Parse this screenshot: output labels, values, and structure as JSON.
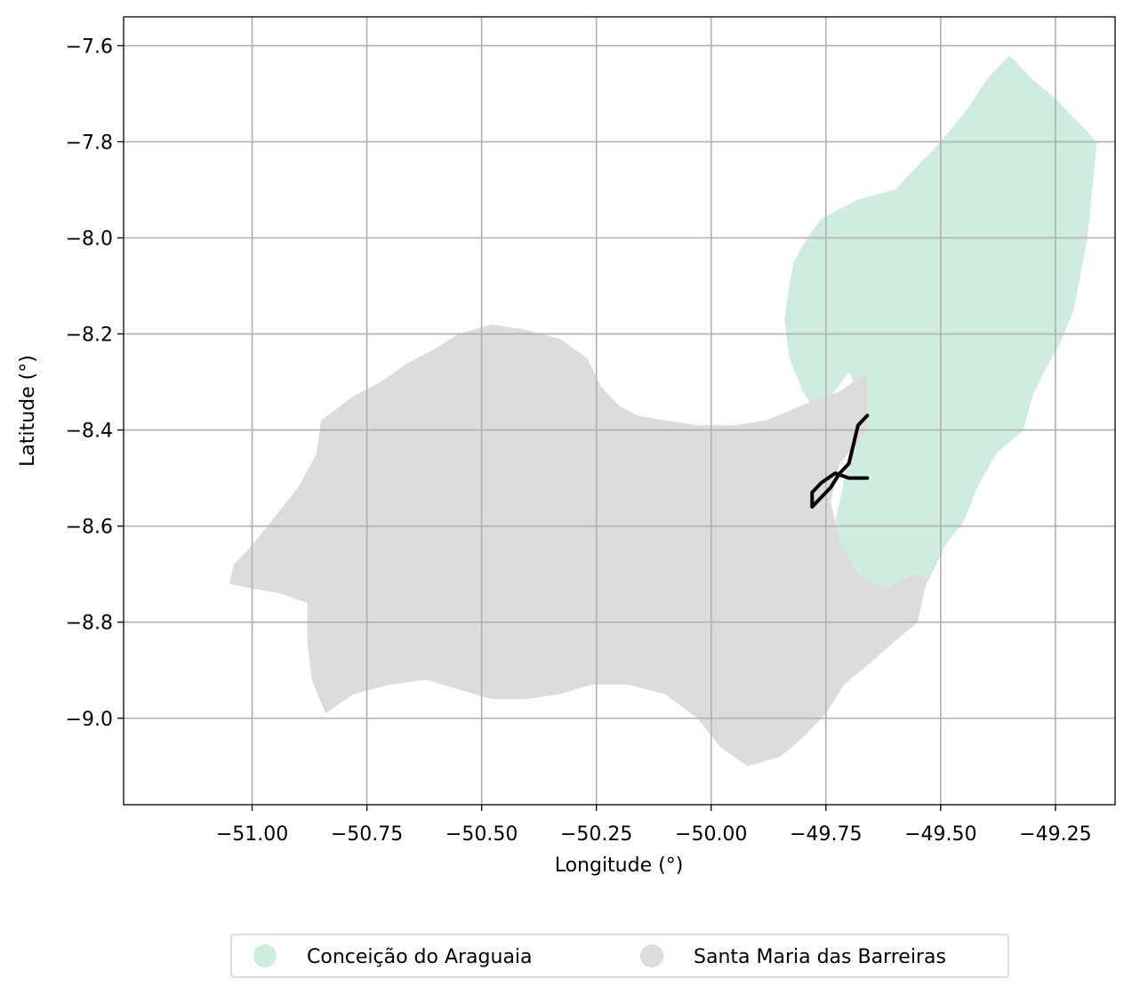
{
  "chart_data": {
    "type": "map",
    "xlabel": "Longitude (°)",
    "ylabel": "Latitude (°)",
    "xlim": [
      -51.28,
      -49.12
    ],
    "ylim": [
      -9.18,
      -7.54
    ],
    "x_ticks": [
      -51.0,
      -50.75,
      -50.5,
      -50.25,
      -50.0,
      -49.75,
      -49.5,
      -49.25
    ],
    "x_tick_labels": [
      "−51.00",
      "−50.75",
      "−50.50",
      "−50.25",
      "−50.00",
      "−49.75",
      "−49.50",
      "−49.25"
    ],
    "y_ticks": [
      -7.6,
      -7.8,
      -8.0,
      -8.2,
      -8.4,
      -8.6,
      -8.8,
      -9.0
    ],
    "y_tick_labels": [
      "−7.6",
      "−7.8",
      "−8.0",
      "−8.2",
      "−8.4",
      "−8.6",
      "−8.8",
      "−9.0"
    ],
    "grid": true,
    "legend_position": "bottom-center",
    "regions": [
      {
        "name": "Conceição do Araguaia",
        "color": "#cfece0",
        "coords": [
          [
            -49.35,
            -7.62
          ],
          [
            -49.3,
            -7.67
          ],
          [
            -49.25,
            -7.71
          ],
          [
            -49.2,
            -7.76
          ],
          [
            -49.16,
            -7.8
          ],
          [
            -49.17,
            -7.9
          ],
          [
            -49.18,
            -8.0
          ],
          [
            -49.2,
            -8.1
          ],
          [
            -49.21,
            -8.15
          ],
          [
            -49.24,
            -8.22
          ],
          [
            -49.27,
            -8.27
          ],
          [
            -49.3,
            -8.33
          ],
          [
            -49.32,
            -8.4
          ],
          [
            -49.38,
            -8.45
          ],
          [
            -49.42,
            -8.52
          ],
          [
            -49.45,
            -8.59
          ],
          [
            -49.49,
            -8.64
          ],
          [
            -49.53,
            -8.72
          ],
          [
            -49.56,
            -8.77
          ],
          [
            -49.59,
            -8.8
          ],
          [
            -49.63,
            -8.79
          ],
          [
            -49.7,
            -8.74
          ],
          [
            -49.73,
            -8.7
          ],
          [
            -49.74,
            -8.63
          ],
          [
            -49.72,
            -8.55
          ],
          [
            -49.7,
            -8.45
          ],
          [
            -49.68,
            -8.32
          ],
          [
            -49.7,
            -8.28
          ],
          [
            -49.74,
            -8.33
          ],
          [
            -49.76,
            -8.38
          ],
          [
            -49.8,
            -8.32
          ],
          [
            -49.83,
            -8.25
          ],
          [
            -49.84,
            -8.17
          ],
          [
            -49.83,
            -8.1
          ],
          [
            -49.82,
            -8.05
          ],
          [
            -49.79,
            -8.0
          ],
          [
            -49.76,
            -7.96
          ],
          [
            -49.68,
            -7.92
          ],
          [
            -49.6,
            -7.9
          ],
          [
            -49.55,
            -7.85
          ],
          [
            -49.5,
            -7.8
          ],
          [
            -49.44,
            -7.73
          ],
          [
            -49.4,
            -7.67
          ]
        ]
      },
      {
        "name": "Santa Maria das Barreiras",
        "color": "#dcdcdc",
        "coords": [
          [
            -51.04,
            -8.68
          ],
          [
            -51.0,
            -8.64
          ],
          [
            -50.95,
            -8.58
          ],
          [
            -50.9,
            -8.52
          ],
          [
            -50.86,
            -8.45
          ],
          [
            -50.85,
            -8.38
          ],
          [
            -50.78,
            -8.33
          ],
          [
            -50.72,
            -8.3
          ],
          [
            -50.66,
            -8.26
          ],
          [
            -50.6,
            -8.23
          ],
          [
            -50.55,
            -8.2
          ],
          [
            -50.48,
            -8.18
          ],
          [
            -50.41,
            -8.19
          ],
          [
            -50.33,
            -8.21
          ],
          [
            -50.27,
            -8.25
          ],
          [
            -50.24,
            -8.31
          ],
          [
            -50.2,
            -8.35
          ],
          [
            -50.16,
            -8.37
          ],
          [
            -50.1,
            -8.38
          ],
          [
            -50.03,
            -8.39
          ],
          [
            -49.95,
            -8.39
          ],
          [
            -49.88,
            -8.38
          ],
          [
            -49.83,
            -8.36
          ],
          [
            -49.78,
            -8.34
          ],
          [
            -49.72,
            -8.32
          ],
          [
            -49.66,
            -8.28
          ],
          [
            -49.66,
            -8.4
          ],
          [
            -49.72,
            -8.47
          ],
          [
            -49.74,
            -8.55
          ],
          [
            -49.72,
            -8.63
          ],
          [
            -49.68,
            -8.7
          ],
          [
            -49.62,
            -8.73
          ],
          [
            -49.56,
            -8.7
          ],
          [
            -49.53,
            -8.71
          ],
          [
            -49.55,
            -8.8
          ],
          [
            -49.6,
            -8.84
          ],
          [
            -49.66,
            -8.89
          ],
          [
            -49.71,
            -8.93
          ],
          [
            -49.75,
            -8.99
          ],
          [
            -49.8,
            -9.04
          ],
          [
            -49.85,
            -9.08
          ],
          [
            -49.92,
            -9.1
          ],
          [
            -49.98,
            -9.06
          ],
          [
            -50.03,
            -9.0
          ],
          [
            -50.1,
            -8.95
          ],
          [
            -50.18,
            -8.93
          ],
          [
            -50.26,
            -8.93
          ],
          [
            -50.33,
            -8.95
          ],
          [
            -50.4,
            -8.96
          ],
          [
            -50.48,
            -8.96
          ],
          [
            -50.55,
            -8.94
          ],
          [
            -50.62,
            -8.92
          ],
          [
            -50.7,
            -8.93
          ],
          [
            -50.78,
            -8.95
          ],
          [
            -50.84,
            -8.99
          ],
          [
            -50.87,
            -8.92
          ],
          [
            -50.88,
            -8.84
          ],
          [
            -50.88,
            -8.76
          ],
          [
            -50.94,
            -8.74
          ],
          [
            -51.0,
            -8.73
          ],
          [
            -51.05,
            -8.72
          ]
        ]
      }
    ],
    "outline": {
      "color": "#000000",
      "coords": [
        [
          -49.66,
          -8.37
        ],
        [
          -49.68,
          -8.39
        ],
        [
          -49.69,
          -8.43
        ],
        [
          -49.7,
          -8.47
        ],
        [
          -49.72,
          -8.49
        ],
        [
          -49.74,
          -8.52
        ],
        [
          -49.76,
          -8.54
        ],
        [
          -49.78,
          -8.56
        ],
        [
          -49.78,
          -8.53
        ],
        [
          -49.76,
          -8.51
        ],
        [
          -49.73,
          -8.49
        ],
        [
          -49.7,
          -8.5
        ],
        [
          -49.66,
          -8.5
        ]
      ]
    }
  }
}
